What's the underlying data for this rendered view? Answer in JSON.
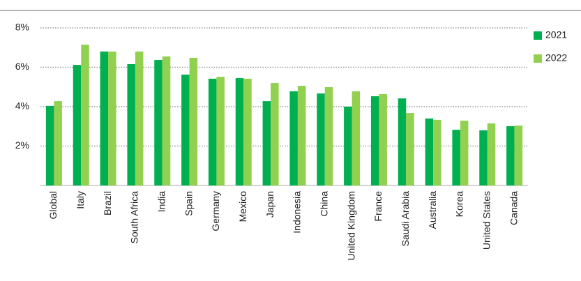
{
  "chart_data": {
    "type": "bar",
    "categories": [
      "Global",
      "Italy",
      "Brazil",
      "South Africa",
      "India",
      "Spain",
      "Germany",
      "Mexico",
      "Japan",
      "Indonesia",
      "China",
      "United Kingdom",
      "France",
      "Saudi Arabia",
      "Australia",
      "Korea",
      "United States",
      "Canada"
    ],
    "series": [
      {
        "name": "2021",
        "color": "#00b050",
        "values": [
          4.04,
          6.12,
          6.8,
          6.16,
          6.37,
          5.63,
          5.42,
          5.45,
          4.28,
          4.78,
          4.67,
          4.0,
          4.53,
          4.42,
          3.4,
          2.83,
          2.8,
          3.01
        ]
      },
      {
        "name": "2022",
        "color": "#92d050",
        "values": [
          4.28,
          7.15,
          6.8,
          6.8,
          6.55,
          6.48,
          5.52,
          5.42,
          5.2,
          5.06,
          4.99,
          4.78,
          4.64,
          3.68,
          3.33,
          3.29,
          3.15,
          3.04
        ]
      }
    ],
    "ylim": [
      0,
      8
    ],
    "yticks": [
      {
        "value": 2,
        "label": "2%"
      },
      {
        "value": 4,
        "label": "4%"
      },
      {
        "value": 6,
        "label": "6%"
      },
      {
        "value": 8,
        "label": "8%"
      }
    ],
    "grid": true,
    "legend": "right"
  }
}
